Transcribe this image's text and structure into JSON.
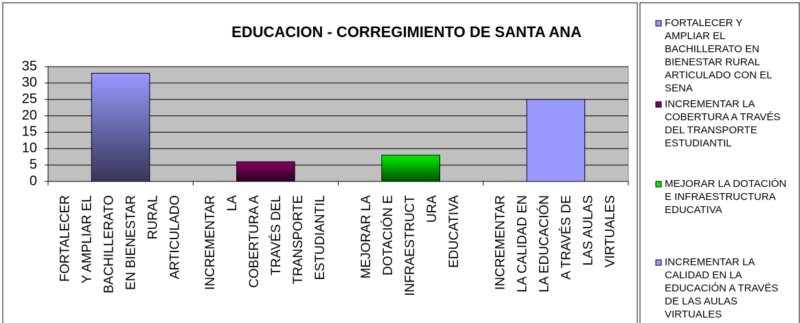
{
  "chart_data": {
    "type": "bar",
    "title": "EDUCACION - CORREGIMIENTO DE SANTA ANA",
    "categories": [
      [
        "FORTALECER",
        "Y AMPLIAR EL",
        "BACHILLERATO",
        "EN BIENESTAR",
        "RURAL",
        "ARTICULADO"
      ],
      [
        "INCREMENTAR",
        "LA",
        "COBERTURA A",
        "TRAVÉS DEL",
        "TRANSPORTE",
        "ESTUDIANTIL"
      ],
      [
        "MEJORAR LA",
        "DOTACIÓN E",
        "INFRAESTRUCT",
        "URA",
        "EDUCATIVA"
      ],
      [
        "INCREMENTAR",
        "LA CALIDAD EN",
        "LA EDUCACIÓN",
        "A TRAVÉS DE",
        "LAS AULAS",
        "VIRTUALES"
      ]
    ],
    "values": [
      33,
      6,
      8,
      25
    ],
    "colors": [
      "#9999ff",
      "#800060",
      "#00ee00",
      "#9999ff"
    ],
    "gradient": [
      true,
      true,
      true,
      false
    ],
    "legend": [
      [
        "FORTALECER Y",
        "AMPLIAR EL",
        "BACHILLERATO EN",
        "BIENESTAR RURAL",
        "ARTICULADO CON EL",
        "SENA"
      ],
      [
        "INCREMENTAR LA",
        "COBERTURA A TRAVÉS",
        "DEL TRANSPORTE",
        "ESTUDIANTIL"
      ],
      [
        "MEJORAR LA DOTACIÓN",
        "E INFRAESTRUCTURA",
        "EDUCATIVA"
      ],
      [
        "INCREMENTAR LA",
        "CALIDAD EN LA",
        "EDUCACIÓN A TRAVÉS",
        "DE LAS AULAS",
        "VIRTUALES"
      ]
    ],
    "ylim": [
      0,
      35
    ],
    "yticks": [
      0,
      5,
      10,
      15,
      20,
      25,
      30,
      35
    ],
    "grid": true
  }
}
